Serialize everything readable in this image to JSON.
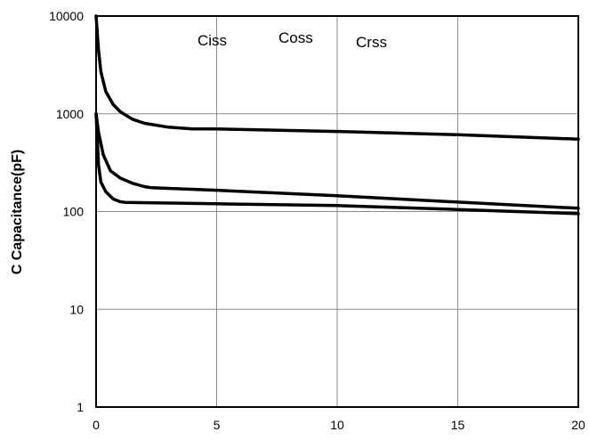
{
  "chart_data": {
    "type": "line",
    "xlabel": "",
    "ylabel": "C Capacitance(pF)",
    "xlim": [
      0,
      20
    ],
    "ylim": [
      1,
      10000
    ],
    "yscale": "log",
    "grid": true,
    "x_ticks": [
      0,
      5,
      10,
      15,
      20
    ],
    "x_tick_labels": [
      "0",
      "5",
      "10",
      "15",
      "20"
    ],
    "y_ticks": [
      1,
      10,
      100,
      1000,
      10000
    ],
    "y_tick_labels": [
      "1",
      "10",
      "100",
      "1000",
      "10000"
    ],
    "annotations": [
      "Ciss",
      "Coss",
      "Crss"
    ],
    "series": [
      {
        "x": [
          0,
          0.1,
          0.2,
          0.4,
          0.7,
          1.0,
          1.5,
          2.0,
          3.0,
          4.0,
          5.0,
          10.0,
          15.0,
          20.0
        ],
        "y": [
          10000,
          4500,
          2700,
          1700,
          1250,
          1050,
          880,
          800,
          730,
          700,
          700,
          660,
          610,
          550
        ]
      },
      {
        "x": [
          0,
          0.1,
          0.3,
          0.6,
          1.0,
          1.5,
          2.0,
          2.3,
          5.0,
          10.0,
          15.0,
          20.0
        ],
        "y": [
          1000,
          650,
          380,
          260,
          220,
          195,
          180,
          175,
          165,
          145,
          125,
          108
        ]
      },
      {
        "x": [
          0,
          0.05,
          0.1,
          0.2,
          0.4,
          0.7,
          1.0,
          1.2,
          5.0,
          10.0,
          15.0,
          20.0
        ],
        "y": [
          1000,
          550,
          300,
          200,
          160,
          135,
          126,
          124,
          120,
          115,
          105,
          95
        ]
      }
    ]
  }
}
